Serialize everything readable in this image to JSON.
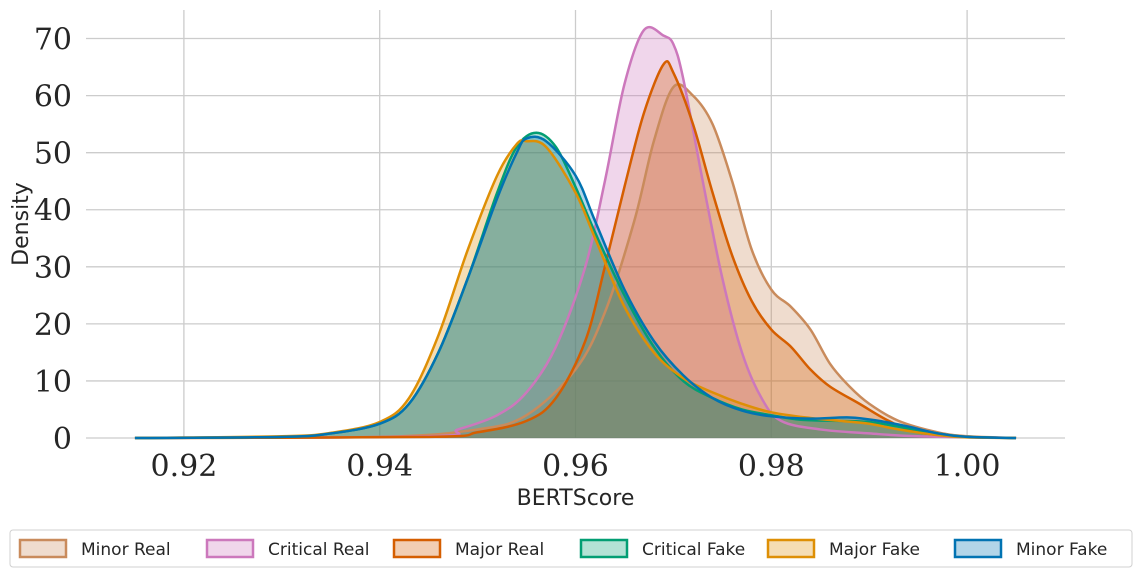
{
  "chart_data": {
    "type": "area",
    "title": "",
    "xlabel": "BERTScore",
    "ylabel": "Density",
    "xlim": [
      0.91,
      1.01
    ],
    "ylim": [
      0,
      75
    ],
    "x_ticks": [
      0.92,
      0.94,
      0.96,
      0.98,
      1.0
    ],
    "x_tick_labels": [
      "0.92",
      "0.94",
      "0.96",
      "0.98",
      "1.00"
    ],
    "y_ticks": [
      0,
      10,
      20,
      30,
      40,
      50,
      60,
      70
    ],
    "y_tick_labels": [
      "0",
      "10",
      "20",
      "30",
      "40",
      "50",
      "60",
      "70"
    ],
    "grid": true,
    "legend_position": "bottom",
    "series": [
      {
        "name": "Minor Real",
        "color": "#c98b5c",
        "points": [
          [
            0.915,
            0
          ],
          [
            0.94,
            0.2
          ],
          [
            0.95,
            1.5
          ],
          [
            0.955,
            4
          ],
          [
            0.96,
            12
          ],
          [
            0.963,
            22
          ],
          [
            0.966,
            38
          ],
          [
            0.968,
            52
          ],
          [
            0.97,
            61.5
          ],
          [
            0.972,
            60
          ],
          [
            0.974,
            55
          ],
          [
            0.976,
            45
          ],
          [
            0.978,
            33
          ],
          [
            0.98,
            26
          ],
          [
            0.982,
            23
          ],
          [
            0.984,
            19
          ],
          [
            0.986,
            13
          ],
          [
            0.988,
            9
          ],
          [
            0.99,
            6
          ],
          [
            0.993,
            3
          ],
          [
            0.997,
            1
          ],
          [
            1.0,
            0.3
          ],
          [
            1.005,
            0
          ]
        ]
      },
      {
        "name": "Critical Real",
        "color": "#cc78bc",
        "points": [
          [
            0.915,
            0
          ],
          [
            0.945,
            0.3
          ],
          [
            0.948,
            1.5
          ],
          [
            0.952,
            4
          ],
          [
            0.955,
            8
          ],
          [
            0.958,
            16
          ],
          [
            0.961,
            30
          ],
          [
            0.963,
            45
          ],
          [
            0.965,
            62
          ],
          [
            0.967,
            71.5
          ],
          [
            0.969,
            70.5
          ],
          [
            0.97,
            69
          ],
          [
            0.971,
            63
          ],
          [
            0.973,
            45
          ],
          [
            0.975,
            28
          ],
          [
            0.977,
            15
          ],
          [
            0.979,
            7
          ],
          [
            0.981,
            3
          ],
          [
            0.985,
            1.5
          ],
          [
            0.99,
            0.8
          ],
          [
            0.995,
            0.3
          ],
          [
            1.005,
            0
          ]
        ]
      },
      {
        "name": "Major Real",
        "color": "#d55e00",
        "points": [
          [
            0.915,
            0
          ],
          [
            0.945,
            0.2
          ],
          [
            0.95,
            1
          ],
          [
            0.955,
            3
          ],
          [
            0.958,
            7
          ],
          [
            0.961,
            17
          ],
          [
            0.963,
            30
          ],
          [
            0.965,
            44
          ],
          [
            0.967,
            57
          ],
          [
            0.969,
            65.5
          ],
          [
            0.97,
            64
          ],
          [
            0.972,
            55
          ],
          [
            0.974,
            43
          ],
          [
            0.976,
            32
          ],
          [
            0.978,
            24
          ],
          [
            0.98,
            19
          ],
          [
            0.982,
            16
          ],
          [
            0.984,
            12
          ],
          [
            0.986,
            9
          ],
          [
            0.989,
            6
          ],
          [
            0.992,
            3
          ],
          [
            0.995,
            1
          ],
          [
            1.0,
            0.2
          ],
          [
            1.005,
            0
          ]
        ]
      },
      {
        "name": "Critical Fake",
        "color": "#029e73",
        "points": [
          [
            0.915,
            0
          ],
          [
            0.93,
            0.2
          ],
          [
            0.935,
            0.8
          ],
          [
            0.94,
            2.5
          ],
          [
            0.943,
            6
          ],
          [
            0.946,
            15
          ],
          [
            0.949,
            28
          ],
          [
            0.952,
            43
          ],
          [
            0.954,
            51
          ],
          [
            0.956,
            53.5
          ],
          [
            0.958,
            51
          ],
          [
            0.96,
            44
          ],
          [
            0.962,
            36
          ],
          [
            0.965,
            25
          ],
          [
            0.968,
            16
          ],
          [
            0.971,
            10
          ],
          [
            0.974,
            7
          ],
          [
            0.977,
            5
          ],
          [
            0.98,
            4
          ],
          [
            0.983,
            3.2
          ],
          [
            0.987,
            3
          ],
          [
            0.99,
            2.8
          ],
          [
            0.993,
            2
          ],
          [
            0.997,
            0.8
          ],
          [
            1.0,
            0.2
          ],
          [
            1.005,
            0
          ]
        ]
      },
      {
        "name": "Major Fake",
        "color": "#de8f05",
        "points": [
          [
            0.915,
            0
          ],
          [
            0.93,
            0.3
          ],
          [
            0.935,
            0.9
          ],
          [
            0.94,
            2.8
          ],
          [
            0.943,
            7
          ],
          [
            0.946,
            18
          ],
          [
            0.949,
            33
          ],
          [
            0.952,
            46
          ],
          [
            0.954,
            51.5
          ],
          [
            0.955,
            52
          ],
          [
            0.957,
            51
          ],
          [
            0.96,
            43
          ],
          [
            0.962,
            35
          ],
          [
            0.965,
            23
          ],
          [
            0.968,
            15
          ],
          [
            0.971,
            10.5
          ],
          [
            0.974,
            8
          ],
          [
            0.977,
            6
          ],
          [
            0.98,
            4.5
          ],
          [
            0.984,
            3.5
          ],
          [
            0.987,
            3
          ],
          [
            0.99,
            2.5
          ],
          [
            0.993,
            1.5
          ],
          [
            0.997,
            0.5
          ],
          [
            1.0,
            0.1
          ],
          [
            1.005,
            0
          ]
        ]
      },
      {
        "name": "Minor Fake",
        "color": "#0173b2",
        "points": [
          [
            0.915,
            0
          ],
          [
            0.93,
            0.2
          ],
          [
            0.935,
            0.8
          ],
          [
            0.94,
            2.5
          ],
          [
            0.943,
            6
          ],
          [
            0.946,
            15
          ],
          [
            0.949,
            28
          ],
          [
            0.952,
            42
          ],
          [
            0.954,
            50
          ],
          [
            0.955,
            52.5
          ],
          [
            0.957,
            52
          ],
          [
            0.96,
            46
          ],
          [
            0.962,
            38
          ],
          [
            0.965,
            26
          ],
          [
            0.968,
            17
          ],
          [
            0.971,
            11
          ],
          [
            0.974,
            7
          ],
          [
            0.977,
            4.8
          ],
          [
            0.98,
            3.8
          ],
          [
            0.984,
            3.4
          ],
          [
            0.988,
            3.6
          ],
          [
            0.991,
            3
          ],
          [
            0.994,
            2
          ],
          [
            0.997,
            0.8
          ],
          [
            1.0,
            0.2
          ],
          [
            1.005,
            0
          ]
        ]
      }
    ]
  }
}
